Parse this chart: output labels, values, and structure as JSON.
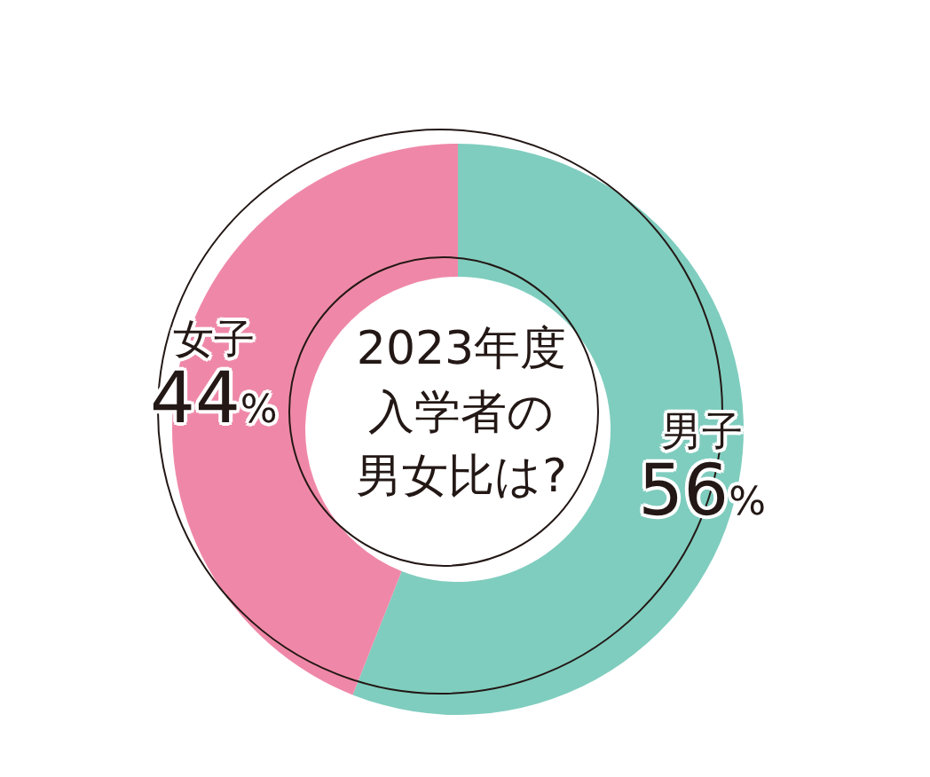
{
  "chart_data": {
    "type": "donut",
    "title": "2023年度入学者の男女比は?",
    "categories": [
      "男子",
      "女子"
    ],
    "values": [
      56,
      44
    ],
    "colors": [
      "#7fcdbf",
      "#ef88a8"
    ],
    "value_labels": [
      "56%",
      "44%"
    ]
  }
}
